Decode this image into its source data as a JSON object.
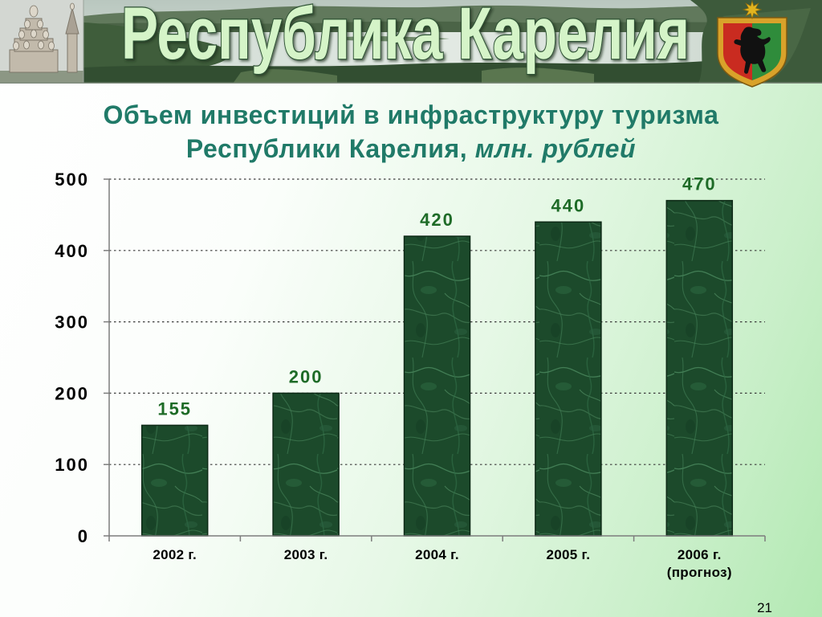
{
  "header": {
    "title": "Республика Карелия"
  },
  "icons": {
    "header_logo": "coat-of-arms-icon"
  },
  "slide": {
    "page_number": "21"
  },
  "colors": {
    "title": "#207a68",
    "data_label": "#1e6b27",
    "bar": "#1c4a2b",
    "header_title_fill": "#d5f4c8"
  },
  "chart_data": {
    "type": "bar",
    "title_lines": [
      "Объем инвестиций в инфраструктуру туризма",
      "Республики Карелия,"
    ],
    "units": "млн. рублей",
    "categories": [
      "2002 г.",
      "2003 г.",
      "2004 г.",
      "2005 г.",
      "2006 г.\n(прогноз)"
    ],
    "values": [
      155,
      200,
      420,
      440,
      470
    ],
    "ylim": [
      0,
      500
    ],
    "yticks": [
      0,
      100,
      200,
      300,
      400,
      500
    ],
    "grid": true
  }
}
